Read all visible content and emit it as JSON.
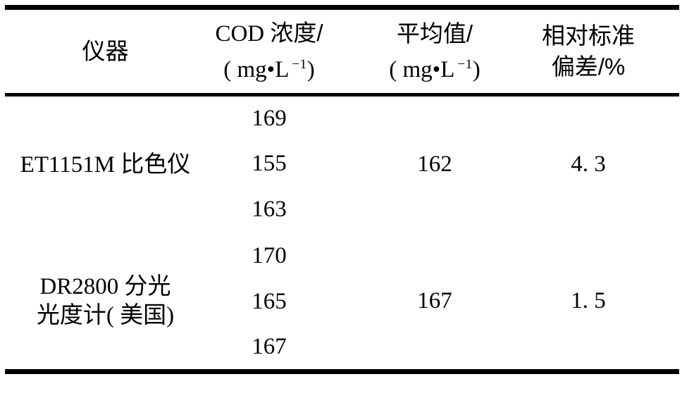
{
  "table": {
    "header": {
      "instrument": "仪器",
      "cod_latin": "COD ",
      "cod_cjk": "浓度/",
      "avg_line1": "平均值/",
      "unit_prefix": "( mg•L",
      "unit_sup": "−1",
      "unit_suffix": ")",
      "rsd_line1": "相对标准",
      "rsd_line2": "偏差/%"
    },
    "groups": [
      {
        "instrument_line1": "ET1151M 比色仪",
        "cod_values": [
          "169",
          "155",
          "163"
        ],
        "average": "162",
        "rsd": "4. 3"
      },
      {
        "instrument_line1": "DR2800 分光",
        "instrument_line2": "光度计( 美国)",
        "cod_values": [
          "170",
          "165",
          "167"
        ],
        "average": "167",
        "rsd": "1. 5"
      }
    ]
  }
}
